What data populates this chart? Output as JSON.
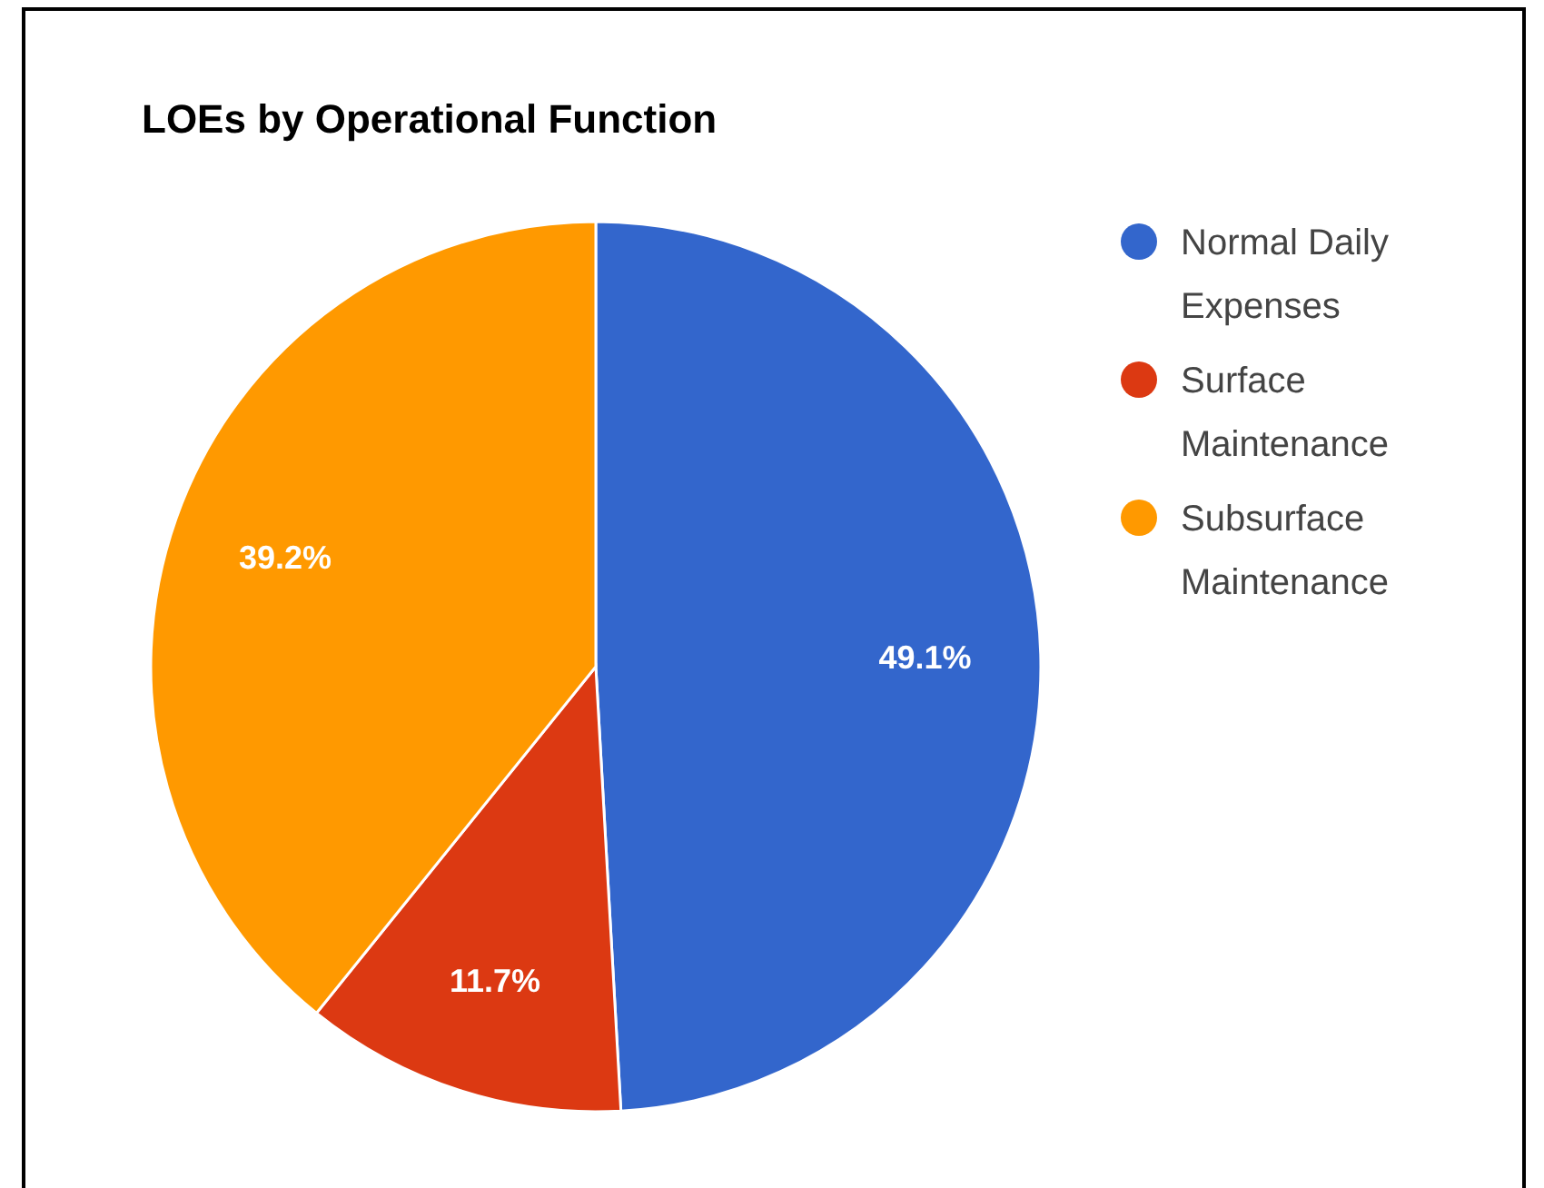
{
  "chart_data": {
    "type": "pie",
    "title": "LOEs by Operational Function",
    "categories": [
      "Normal Daily Expenses",
      "Surface Maintenance",
      "Subsurface Maintenance"
    ],
    "values": [
      49.1,
      11.7,
      39.2
    ],
    "colors": [
      "#3366cc",
      "#dc3912",
      "#ff9900"
    ],
    "value_labels": [
      "49.1%",
      "11.7%",
      "39.2%"
    ],
    "legend": "right"
  }
}
